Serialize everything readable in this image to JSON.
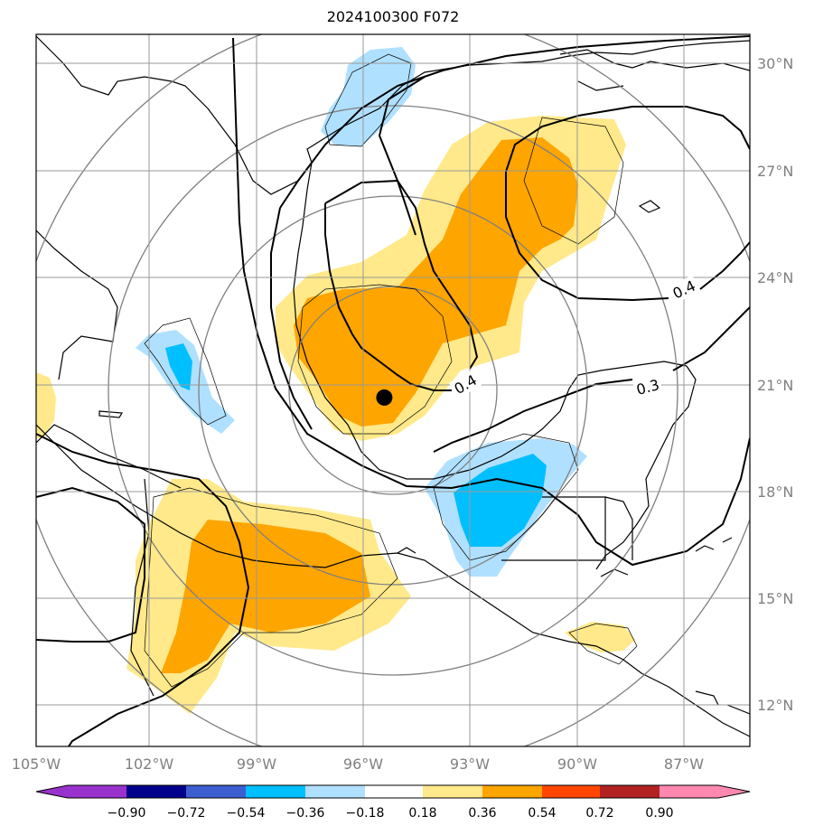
{
  "title": "2024100300 F072",
  "map": {
    "lon_range": [
      -105,
      -84.5
    ],
    "lat_range": [
      11,
      31
    ],
    "lon_ticks": [
      -105,
      -102,
      -99,
      -96,
      -93,
      -90,
      -87
    ],
    "lon_labels": [
      "105°W",
      "102°W",
      "99°W",
      "96°W",
      "93°W",
      "90°W",
      "87°W"
    ],
    "lat_ticks": [
      12,
      15,
      18,
      21,
      24,
      27,
      30
    ],
    "lat_labels": [
      "12°N",
      "15°N",
      "18°N",
      "21°N",
      "24°N",
      "27°N",
      "30°N"
    ],
    "storm_marker": {
      "lon": -95.0,
      "lat": 20.8
    },
    "contour_labels": [
      "0.4",
      "0.4",
      "0.3"
    ]
  },
  "colorbar": {
    "levels": [
      "−0.90",
      "−0.72",
      "−0.54",
      "−0.36",
      "−0.18",
      "0.18",
      "0.36",
      "0.54",
      "0.72",
      "0.90"
    ],
    "colors": [
      "#9932cc",
      "#00008b",
      "#3c5ed0",
      "#00bfff",
      "#b0e0ff",
      "#ffffff",
      "#ffe98a",
      "#ffa500",
      "#ff4500",
      "#b22222",
      "#ff88b0"
    ]
  }
}
